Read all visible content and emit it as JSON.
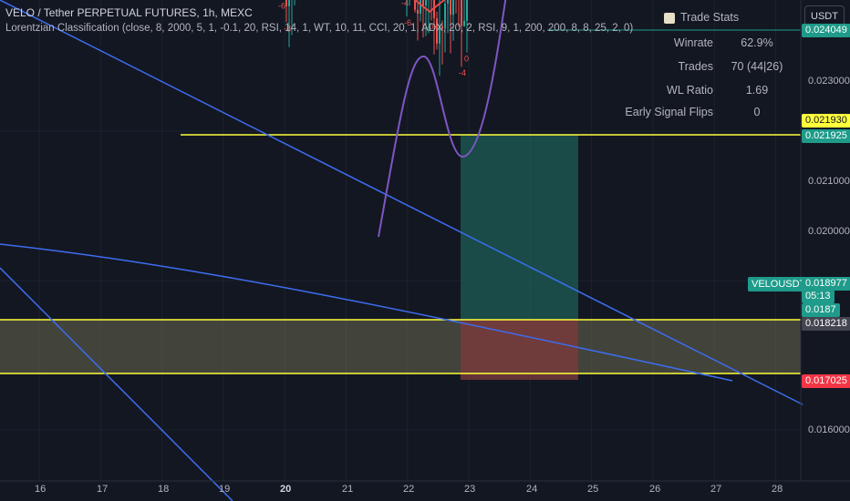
{
  "header": {
    "title": "VELO / Tether PERPETUAL FUTURES, 1h, MEXC",
    "indicator": "Lorentzian Classification (close, 8, 2000, 5, 1, -0.1, 20, RSI, 14, 1, WT, 10, 11, CCI, 20, 1, ADX, 20, 2, RSI, 9, 1, 200, 200, 8, 8, 25, 2, 0)"
  },
  "currency_button": "USDT",
  "trade_stats": {
    "title": "Trade Stats",
    "rows": [
      {
        "label": "Winrate",
        "value": "62.9%"
      },
      {
        "label": "Trades",
        "value": "70 (44|26)"
      },
      {
        "label": "WL Ratio",
        "value": "1.69"
      },
      {
        "label": "Early Signal Flips",
        "value": "0"
      }
    ]
  },
  "price_axis": {
    "labels": [
      "0.023000",
      "0.021000",
      "0.020000",
      "0.016000"
    ],
    "tags": [
      {
        "text": "0.024049",
        "price": 0.024049,
        "bg": "#1e9b8a",
        "fg": "#ffffff"
      },
      {
        "text": "0.021930",
        "price": 0.02193,
        "bg": "#ffff3b",
        "fg": "#131722"
      },
      {
        "text": "0.021925",
        "price": 0.021925,
        "bg": "#1e9b8a",
        "fg": "#ffffff"
      },
      {
        "text": "0.018977",
        "price": 0.018977,
        "bg": "#1e9b8a",
        "fg": "#ffffff"
      },
      {
        "text": "05:13",
        "price": 0.018977,
        "bg": "#1e9b8a",
        "fg": "#ffffff"
      },
      {
        "text": "0.0187",
        "price": 0.0187,
        "bg": "#1e9b8a",
        "fg": "#ffffff"
      },
      {
        "text": "0.018218",
        "price": 0.018218,
        "bg": "#434651",
        "fg": "#ffffff"
      },
      {
        "text": "0.017025",
        "price": 0.017025,
        "bg": "#f23645",
        "fg": "#ffffff"
      }
    ],
    "symbol_tag": "VELOUSDT.P"
  },
  "time_axis": {
    "labels": [
      "16",
      "17",
      "18",
      "19",
      "20",
      "21",
      "22",
      "23",
      "24",
      "25",
      "26",
      "27",
      "28"
    ]
  },
  "colors": {
    "background": "#131722",
    "up": "#26a69a",
    "down": "#ef5350",
    "trendline": "#3d6df0",
    "level": "#ffff3b",
    "kernel_red": "#e04b4b",
    "kernel_green": "#26c281",
    "projection": "#7e57c2"
  },
  "chart_data": {
    "type": "candlestick",
    "symbol": "VELOUSDT.P",
    "timeframe": "1h",
    "x_ticks": [
      "16",
      "17",
      "18",
      "19",
      "20",
      "21",
      "22",
      "23",
      "24",
      "25",
      "26",
      "27",
      "28"
    ],
    "y_ticks": [
      0.016,
      0.02,
      0.021,
      0.023
    ],
    "ylim": [
      0.01555,
      0.02444
    ],
    "last_price": 0.018977,
    "countdown": "05:13",
    "horizontal_levels": [
      0.02193,
      0.0187,
      0.018218,
      0.017025
    ],
    "kernel_sample": [
      0.0205,
      0.0211,
      0.0217,
      0.0226,
      0.0222,
      0.0212,
      0.0209,
      0.0211,
      0.0212,
      0.021,
      0.0207,
      0.0211,
      0.0215,
      0.0213,
      0.0206,
      0.0199,
      0.0193,
      0.0192,
      0.0196,
      0.0198,
      0.0198,
      0.0191,
      0.0189,
      0.0188,
      0.0189,
      0.019
    ]
  }
}
